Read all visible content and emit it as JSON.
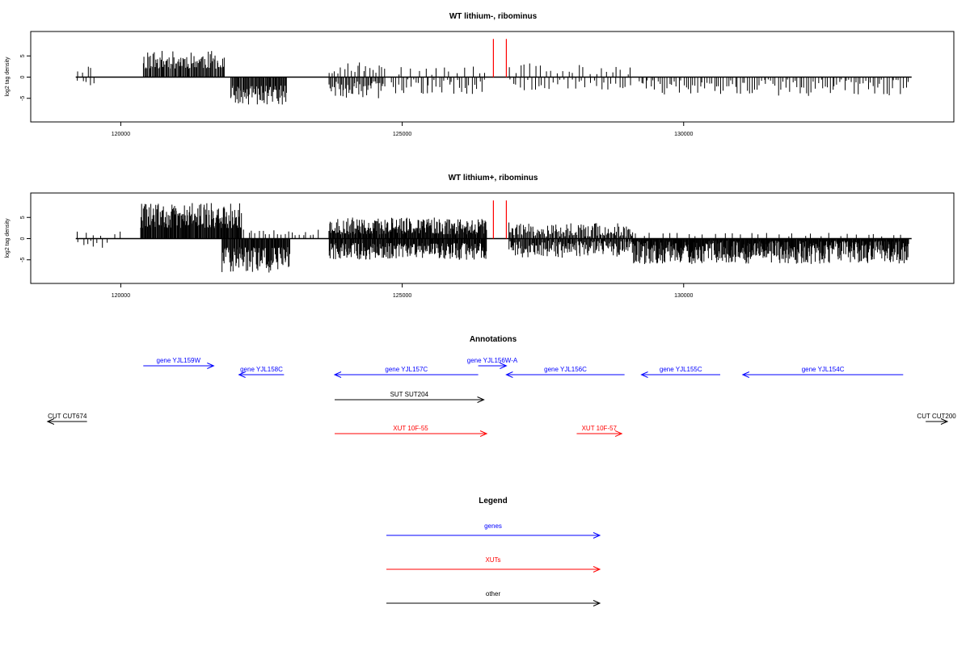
{
  "chart_data": [
    {
      "type": "bar",
      "title": "WT lithium-, ribominus",
      "ylabel": "log2 tag density",
      "xlim": [
        118400,
        134800
      ],
      "ylim": [
        -10,
        10
      ],
      "x_ticks": [
        120000,
        125000,
        130000
      ],
      "y_ticks": [
        5,
        0,
        -5
      ],
      "seed": 11,
      "segments": [
        {
          "start": 119250,
          "end": 119550,
          "sign": 1,
          "step": 80,
          "min": 1.0,
          "max": 2.8
        },
        {
          "start": 119250,
          "end": 119550,
          "sign": -1,
          "step": 70,
          "min": 0.5,
          "max": 3.0
        },
        {
          "start": 120400,
          "end": 121850,
          "sign": 1,
          "step": 16,
          "min": 2.0,
          "max": 6.2
        },
        {
          "start": 121950,
          "end": 122950,
          "sign": -1,
          "step": 14,
          "min": 2.0,
          "max": 6.5
        },
        {
          "start": 123700,
          "end": 124700,
          "sign": -1,
          "step": 22,
          "min": 1.0,
          "max": 5.0
        },
        {
          "start": 123700,
          "end": 124700,
          "sign": 1,
          "step": 55,
          "min": 0.8,
          "max": 3.8
        },
        {
          "start": 124800,
          "end": 126500,
          "sign": -1,
          "step": 45,
          "min": 0.5,
          "max": 4.0
        },
        {
          "start": 124900,
          "end": 126500,
          "sign": 1,
          "step": 120,
          "min": 0.5,
          "max": 2.5
        },
        {
          "start": 126900,
          "end": 129100,
          "sign": 1,
          "step": 95,
          "min": 0.5,
          "max": 3.4
        },
        {
          "start": 126900,
          "end": 129100,
          "sign": -1,
          "step": 65,
          "min": 0.5,
          "max": 3.2
        },
        {
          "start": 129200,
          "end": 134000,
          "sign": -1,
          "step": 42,
          "min": 0.5,
          "max": 4.5
        }
      ],
      "spikes": [
        {
          "x": 126620,
          "y": 9
        },
        {
          "x": 126850,
          "y": 9
        }
      ]
    },
    {
      "type": "bar",
      "title": "WT lithium+, ribominus",
      "ylabel": "log2 tag density",
      "xlim": [
        118400,
        134800
      ],
      "ylim": [
        -10,
        10
      ],
      "x_ticks": [
        120000,
        125000,
        130000
      ],
      "y_ticks": [
        5,
        0,
        -5
      ],
      "seed": 29,
      "segments": [
        {
          "start": 119250,
          "end": 119650,
          "sign": 1,
          "step": 120,
          "min": 0.5,
          "max": 1.8
        },
        {
          "start": 119250,
          "end": 119750,
          "sign": -1,
          "step": 70,
          "min": 0.5,
          "max": 2.5
        },
        {
          "start": 119900,
          "end": 120000,
          "sign": 1,
          "step": 100,
          "min": 1.0,
          "max": 1.8
        },
        {
          "start": 120350,
          "end": 122150,
          "sign": 1,
          "step": 11,
          "min": 2.5,
          "max": 8.5
        },
        {
          "start": 121800,
          "end": 123000,
          "sign": -1,
          "step": 11,
          "min": 2.0,
          "max": 8.0
        },
        {
          "start": 122200,
          "end": 123500,
          "sign": 1,
          "step": 65,
          "min": 0.8,
          "max": 2.2
        },
        {
          "start": 123700,
          "end": 126500,
          "sign": 1,
          "step": 11,
          "min": 1.0,
          "max": 5.0
        },
        {
          "start": 123700,
          "end": 126500,
          "sign": -1,
          "step": 11,
          "min": 1.0,
          "max": 5.0
        },
        {
          "start": 126900,
          "end": 129100,
          "sign": 1,
          "step": 18,
          "min": 0.5,
          "max": 3.8
        },
        {
          "start": 126900,
          "end": 129100,
          "sign": -1,
          "step": 14,
          "min": 0.5,
          "max": 4.5
        },
        {
          "start": 129100,
          "end": 134000,
          "sign": -1,
          "step": 9,
          "min": 0.5,
          "max": 6.0
        },
        {
          "start": 129100,
          "end": 134000,
          "sign": 1,
          "step": 160,
          "min": 0.5,
          "max": 1.5
        }
      ],
      "spikes": [
        {
          "x": 126620,
          "y": 9
        },
        {
          "x": 126850,
          "y": 9
        }
      ]
    }
  ],
  "annotations": {
    "title": "Annotations",
    "items": [
      {
        "label": "gene YJL159W",
        "start": 120400,
        "end": 121650,
        "dir": 1,
        "row": 1,
        "color": "#0000ff"
      },
      {
        "label": "gene YJL158C",
        "start": 122100,
        "end": 122900,
        "dir": -1,
        "row": 2,
        "color": "#0000ff"
      },
      {
        "label": "gene YJL157C",
        "start": 123800,
        "end": 126350,
        "dir": -1,
        "row": 2,
        "color": "#0000ff"
      },
      {
        "label": "gene YJL156W-A",
        "start": 126350,
        "end": 126850,
        "dir": 1,
        "row": 1,
        "color": "#0000ff"
      },
      {
        "label": "gene YJL156C",
        "start": 126850,
        "end": 128950,
        "dir": -1,
        "row": 2,
        "color": "#0000ff"
      },
      {
        "label": "gene YJL155C",
        "start": 129250,
        "end": 130650,
        "dir": -1,
        "row": 2,
        "color": "#0000ff"
      },
      {
        "label": "gene YJL154C",
        "start": 131050,
        "end": 133900,
        "dir": -1,
        "row": 2,
        "color": "#0000ff"
      },
      {
        "label": "SUT SUT204",
        "start": 123800,
        "end": 126450,
        "dir": 1,
        "row": 3,
        "color": "#000000"
      },
      {
        "label": "CUT CUT674",
        "start": 118700,
        "end": 119400,
        "dir": -1,
        "row": 4,
        "color": "#000000"
      },
      {
        "label": "CUT CUT200",
        "start": 134300,
        "end": 134800,
        "dir": 1,
        "row": 4,
        "color": "#000000"
      },
      {
        "label": "XUT 10F-55",
        "start": 123800,
        "end": 126500,
        "dir": 1,
        "row": 5,
        "color": "#ff0000"
      },
      {
        "label": "XUT 10F-57",
        "start": 128100,
        "end": 128900,
        "dir": 1,
        "row": 5,
        "color": "#ff0000"
      }
    ]
  },
  "legend": {
    "title": "Legend",
    "items": [
      {
        "label": "genes",
        "color": "#0000ff"
      },
      {
        "label": "XUTs",
        "color": "#ff0000"
      },
      {
        "label": "other",
        "color": "#000000"
      }
    ]
  }
}
